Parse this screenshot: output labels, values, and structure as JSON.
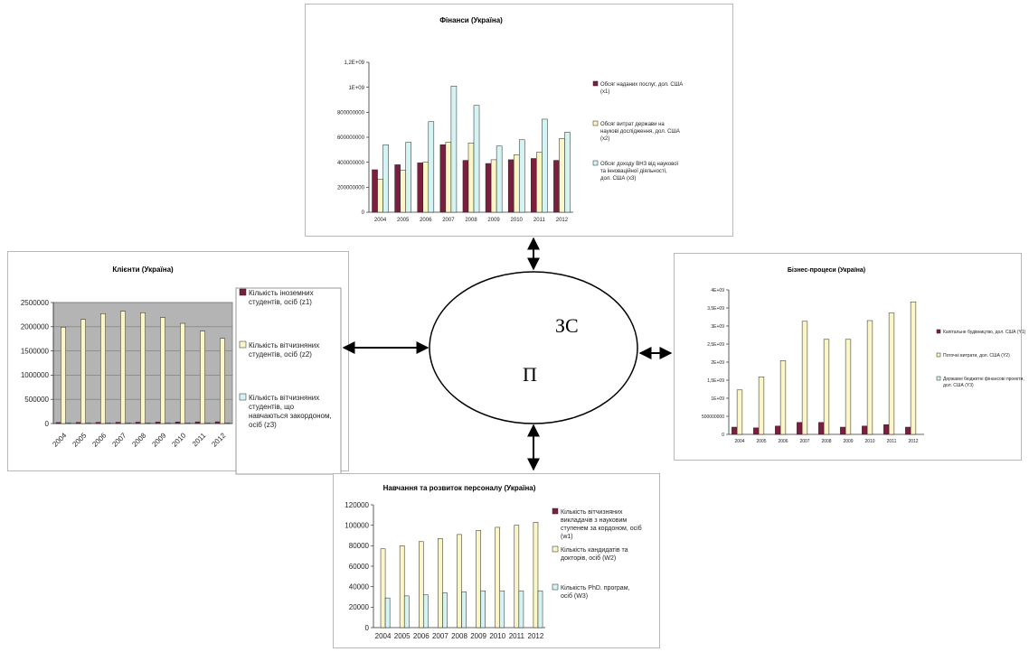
{
  "colors": {
    "s1": "#7b1f3e",
    "s2": "#fbf6c6",
    "s3": "#d4f4f3",
    "plotgray": "#b4b4b4"
  },
  "center": {
    "label_top": "ЗС",
    "label_bottom": "П"
  },
  "chart_data": [
    {
      "id": "finance",
      "type": "bar",
      "title": "Фінанси (Україна)",
      "categories": [
        "2004",
        "2005",
        "2006",
        "2007",
        "2008",
        "2009",
        "2010",
        "2011",
        "2012"
      ],
      "series": [
        {
          "name": "Обсяг наданих послуг, дол. США (x1)",
          "values": [
            340000000,
            380000000,
            395000000,
            540000000,
            415000000,
            390000000,
            420000000,
            430000000,
            415000000
          ]
        },
        {
          "name": "Обсяг витрат держави на наукові дослідження, дол. США (x2)",
          "values": [
            265000000,
            335000000,
            400000000,
            560000000,
            555000000,
            420000000,
            460000000,
            480000000,
            590000000
          ]
        },
        {
          "name": "Обсяг доходу ВНЗ від наукової та інноваційної діяльності, дол. США (x3)",
          "values": [
            540000000,
            560000000,
            725000000,
            1010000000,
            855000000,
            530000000,
            580000000,
            745000000,
            640000000
          ]
        }
      ],
      "yticks": [
        "0",
        "200000000",
        "400000000",
        "600000000",
        "800000000",
        "1E+09",
        "1,2E+09"
      ],
      "ylim": [
        0,
        1200000000
      ],
      "legend": "right"
    },
    {
      "id": "clients",
      "type": "bar",
      "title": "Клієнти (Україна)",
      "categories": [
        "2004",
        "2005",
        "2006",
        "2007",
        "2008",
        "2009",
        "2010",
        "2011",
        "2012"
      ],
      "series": [
        {
          "name": "Кількість іноземних студентів, осіб (z1)",
          "values": [
            20000,
            22000,
            24000,
            26000,
            28000,
            30000,
            32000,
            34000,
            36000
          ]
        },
        {
          "name": "Кількість вітчизняних студентів, осіб (z2)",
          "values": [
            1990000,
            2150000,
            2270000,
            2320000,
            2290000,
            2190000,
            2070000,
            1910000,
            1760000
          ]
        },
        {
          "name": "Кількість вітчизняних студентів, що навчаються закордоном, осіб (z3)",
          "values": [
            10000,
            10000,
            10000,
            10000,
            10000,
            10000,
            10000,
            10000,
            10000
          ]
        }
      ],
      "yticks": [
        "0",
        "500000",
        "1000000",
        "1500000",
        "2000000",
        "2500000"
      ],
      "ylim": [
        0,
        2500000
      ],
      "legend": "right",
      "plot_background": "gray"
    },
    {
      "id": "business",
      "type": "bar",
      "title": "Бізнес-процеси (Україна)",
      "categories": [
        "2004",
        "2005",
        "2006",
        "2007",
        "2008",
        "2009",
        "2010",
        "2011",
        "2012"
      ],
      "series": [
        {
          "name": "Капітальне будівництво, дол. США (Y1)",
          "values": [
            200000000,
            180000000,
            230000000,
            330000000,
            330000000,
            200000000,
            230000000,
            270000000,
            200000000
          ]
        },
        {
          "name": "Поточні витрати, дол. США (Y2)",
          "values": [
            1230000000,
            1590000000,
            2040000000,
            3130000000,
            2630000000,
            2630000000,
            3150000000,
            3360000000,
            3670000000
          ]
        },
        {
          "name": "Державні бюджетні фінансові проекти, дол. США (Y3)",
          "values": [
            0,
            0,
            0,
            0,
            0,
            0,
            0,
            0,
            0
          ]
        }
      ],
      "yticks": [
        "0",
        "500000000",
        "1E+09",
        "1,5E+09",
        "2E+09",
        "2,5E+09",
        "3E+09",
        "3,5E+09",
        "4E+09"
      ],
      "ylim": [
        0,
        4000000000
      ],
      "legend": "right"
    },
    {
      "id": "training",
      "type": "bar",
      "title": "Навчання та розвиток персоналу (Україна)",
      "categories": [
        "2004",
        "2005",
        "2006",
        "2007",
        "2008",
        "2009",
        "2010",
        "2011",
        "2012"
      ],
      "series": [
        {
          "name": "Кількість вітчизняних викладачів з науковим ступенем за кордоном, осіб (w1)",
          "values": [
            0,
            0,
            0,
            0,
            0,
            0,
            0,
            0,
            0
          ]
        },
        {
          "name": "Кількість кандидатів та докторів, осіб (W2)",
          "values": [
            77000,
            80000,
            84000,
            87000,
            91000,
            95000,
            98000,
            100000,
            103000
          ]
        },
        {
          "name": "Кількість PhD. програм, осіб (W3)",
          "values": [
            29000,
            31000,
            32000,
            34000,
            35000,
            36000,
            36000,
            36000,
            36000
          ]
        }
      ],
      "yticks": [
        "0",
        "20000",
        "40000",
        "60000",
        "80000",
        "100000",
        "120000"
      ],
      "ylim": [
        0,
        120000
      ],
      "legend": "right"
    }
  ]
}
